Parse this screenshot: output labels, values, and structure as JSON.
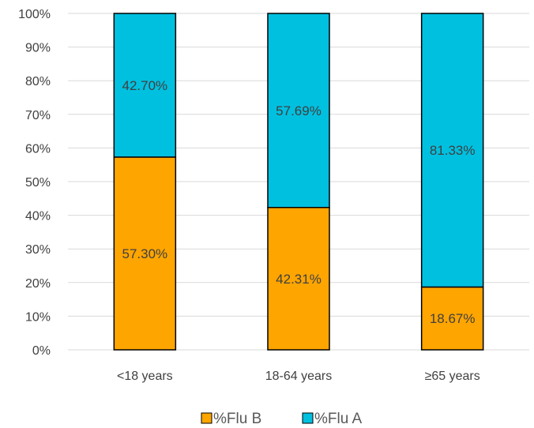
{
  "chart_data": {
    "type": "bar",
    "stacked": true,
    "percent": true,
    "categories": [
      "<18 years",
      "18-64 years",
      "≥65 years"
    ],
    "series": [
      {
        "name": "%Flu B",
        "values": [
          57.3,
          42.31,
          18.67
        ],
        "labels": [
          "57.30%",
          "42.31%",
          "18.67%"
        ],
        "color": "#FFA500"
      },
      {
        "name": "%Flu A",
        "values": [
          42.7,
          57.69,
          81.33
        ],
        "labels": [
          "42.70%",
          "57.69%",
          "81.33%"
        ],
        "color": "#00C0E0"
      }
    ],
    "ylim": [
      0,
      100
    ],
    "yticks": [
      "0%",
      "10%",
      "20%",
      "30%",
      "40%",
      "50%",
      "60%",
      "70%",
      "80%",
      "90%",
      "100%"
    ],
    "grid": true,
    "legend_position": "bottom"
  }
}
